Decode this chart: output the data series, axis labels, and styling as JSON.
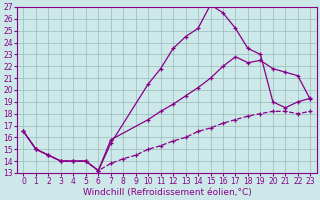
{
  "xlabel": "Windchill (Refroidissement éolien,°C)",
  "xlim": [
    -0.5,
    23.5
  ],
  "ylim": [
    13,
    27
  ],
  "xticks": [
    0,
    1,
    2,
    3,
    4,
    5,
    6,
    7,
    8,
    9,
    10,
    11,
    12,
    13,
    14,
    15,
    16,
    17,
    18,
    19,
    20,
    21,
    22,
    23
  ],
  "yticks": [
    13,
    14,
    15,
    16,
    17,
    18,
    19,
    20,
    21,
    22,
    23,
    24,
    25,
    26,
    27
  ],
  "bg_color": "#cce8e8",
  "line_color": "#880088",
  "grid_color": "#99bbbb",
  "line1_x": [
    0,
    1,
    2,
    3,
    4,
    5,
    6,
    7,
    10,
    11,
    12,
    13,
    14,
    15,
    16,
    17,
    18,
    19,
    20,
    21,
    22,
    23
  ],
  "line1_y": [
    16.5,
    15.0,
    14.5,
    14.0,
    14.0,
    14.0,
    13.2,
    15.5,
    20.5,
    21.8,
    23.5,
    24.5,
    25.2,
    27.2,
    26.5,
    25.2,
    23.5,
    23.0,
    19.0,
    18.5,
    19.0,
    19.3
  ],
  "line2_x": [
    0,
    1,
    2,
    3,
    4,
    5,
    6,
    7,
    10,
    11,
    12,
    13,
    14,
    15,
    16,
    17,
    18,
    19,
    20,
    21,
    22,
    23
  ],
  "line2_y": [
    16.5,
    15.0,
    14.5,
    14.0,
    14.0,
    14.0,
    13.2,
    15.8,
    17.5,
    18.2,
    18.8,
    19.5,
    20.2,
    21.0,
    22.0,
    22.8,
    22.3,
    22.5,
    21.8,
    21.5,
    21.2,
    19.2
  ],
  "line3_x": [
    0,
    1,
    2,
    3,
    4,
    5,
    6,
    7,
    8,
    9,
    10,
    11,
    12,
    13,
    14,
    15,
    16,
    17,
    18,
    19,
    20,
    21,
    22,
    23
  ],
  "line3_y": [
    16.5,
    15.0,
    14.5,
    14.0,
    14.0,
    14.0,
    13.2,
    13.8,
    14.2,
    14.5,
    15.0,
    15.3,
    15.7,
    16.0,
    16.5,
    16.8,
    17.2,
    17.5,
    17.8,
    18.0,
    18.2,
    18.2,
    18.0,
    18.2
  ],
  "tick_fontsize": 5.5,
  "xlabel_fontsize": 6.5
}
